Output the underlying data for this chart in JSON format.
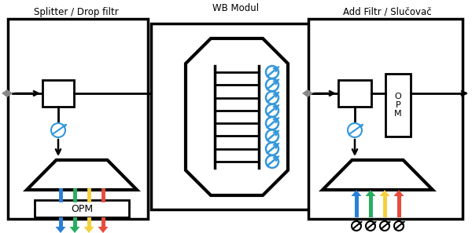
{
  "title_left": "Splitter / Drop filtr",
  "title_middle": "WB Modul",
  "title_right": "Add Filtr / Slučovač",
  "colors": {
    "blue": "#2980D9",
    "green": "#27AE60",
    "yellow": "#F4D03F",
    "red": "#E74C3C",
    "black": "#000000",
    "white": "#FFFFFF",
    "gray": "#7F8C8D",
    "cyan_blue": "#3498DB",
    "bg": "#FFFFFF"
  },
  "figsize": [
    6.0,
    2.97
  ],
  "dpi": 100
}
